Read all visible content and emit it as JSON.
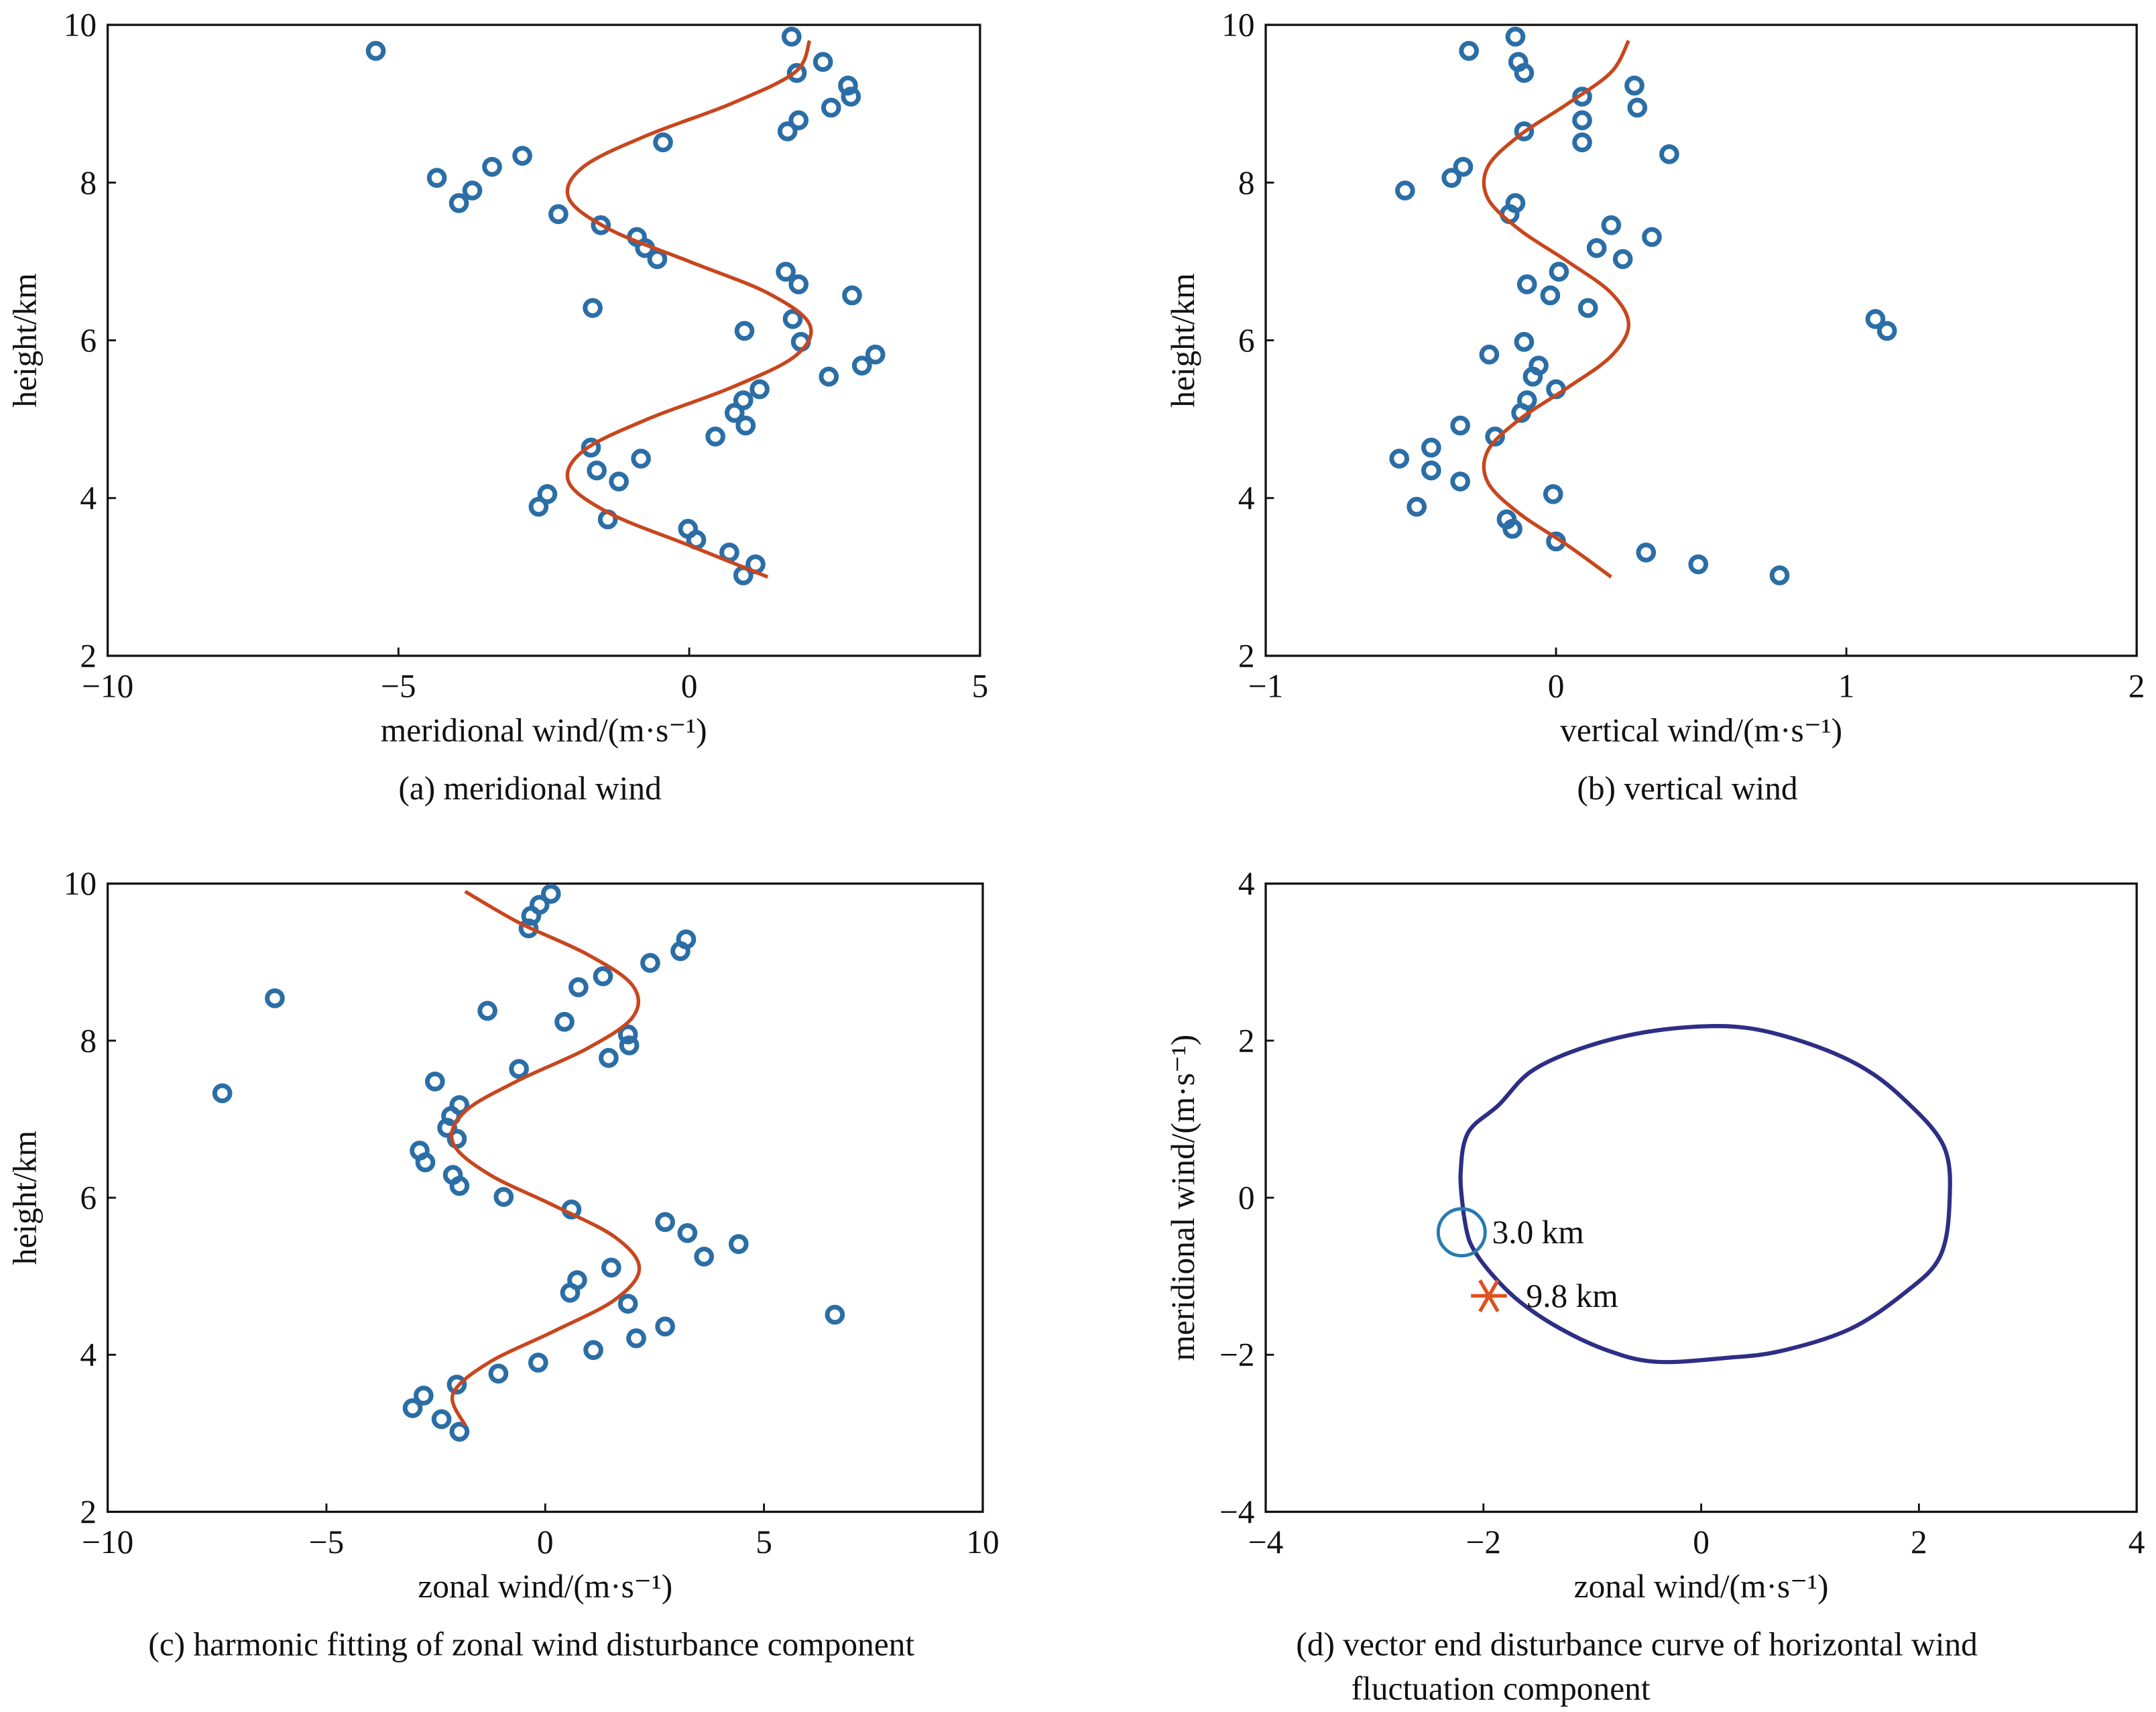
{
  "chart_data": [
    {
      "type": "scatter",
      "title": [
        "(a) meridional wind"
      ],
      "xlabel": "meridional wind/(m·s⁻¹)",
      "ylabel": "height/km",
      "xlim": [
        -10,
        5
      ],
      "ylim": [
        2,
        10
      ],
      "xticks": [
        {
          "value": -10,
          "label": "−10"
        },
        {
          "value": -5,
          "label": "−5"
        },
        0,
        5
      ],
      "yticks": [
        2,
        4,
        6,
        8,
        10
      ],
      "series": [
        {
          "mode": "markers",
          "color": "#2b6ea6",
          "x": [
            1.76,
            -5.39,
            2.3,
            1.85,
            2.73,
            2.78,
            2.44,
            1.88,
            1.69,
            -0.45,
            -2.87,
            -3.39,
            -4.34,
            -3.73,
            -3.96,
            -2.25,
            -1.52,
            -0.9,
            -0.76,
            -0.55,
            1.66,
            1.88,
            2.8,
            -1.66,
            1.78,
            0.95,
            1.92,
            3.2,
            2.97,
            2.4,
            1.21,
            0.93,
            0.78,
            0.97,
            0.45,
            -1.69,
            -0.83,
            -1.59,
            -1.21,
            -2.44,
            -2.59,
            -1.4,
            -0.02,
            0.12,
            0.69,
            1.14,
            0.93
          ],
          "y": [
            9.85,
            9.67,
            9.53,
            9.39,
            9.23,
            9.09,
            8.95,
            8.79,
            8.65,
            8.51,
            8.34,
            8.2,
            8.06,
            7.9,
            7.74,
            7.6,
            7.46,
            7.31,
            7.17,
            7.03,
            6.87,
            6.71,
            6.57,
            6.41,
            6.27,
            6.12,
            5.98,
            5.82,
            5.68,
            5.54,
            5.38,
            5.24,
            5.08,
            4.92,
            4.78,
            4.64,
            4.5,
            4.35,
            4.21,
            4.05,
            3.89,
            3.73,
            3.61,
            3.47,
            3.31,
            3.16,
            3.02
          ]
        },
        {
          "mode": "lines",
          "color": "#c8461e",
          "x": [
            1.35,
            0,
            -1.35,
            -2.07,
            -1.82,
            -0.72,
            0.72,
            1.82,
            2.07,
            1.35,
            0,
            -1.35,
            -2.07,
            -1.82,
            -0.72,
            0.72,
            1.82,
            2.07
          ],
          "y": [
            3.0,
            3.4,
            3.8,
            4.2,
            4.6,
            5.0,
            5.4,
            5.8,
            6.2,
            6.6,
            7.0,
            7.4,
            7.8,
            8.2,
            8.6,
            9.0,
            9.4,
            9.8
          ]
        }
      ]
    },
    {
      "type": "scatter",
      "title": [
        "(b) vertical wind"
      ],
      "xlabel": "vertical wind/(m·s⁻¹)",
      "ylabel": "height/km",
      "xlim": [
        -1,
        2
      ],
      "ylim": [
        2,
        10
      ],
      "xticks": [
        {
          "value": -1,
          "label": "−1"
        },
        0,
        1,
        2
      ],
      "yticks": [
        2,
        4,
        6,
        8,
        10
      ],
      "series": [
        {
          "mode": "markers",
          "color": "#2b6ea6",
          "x": [
            -0.14,
            -0.3,
            -0.13,
            -0.11,
            0.27,
            0.09,
            0.28,
            0.09,
            -0.11,
            0.09,
            0.39,
            -0.32,
            -0.36,
            -0.52,
            -0.14,
            -0.16,
            0.19,
            0.33,
            0.14,
            0.23,
            0.01,
            -0.1,
            -0.02,
            0.11,
            1.1,
            1.14,
            -0.11,
            -0.23,
            -0.06,
            -0.08,
            0.0,
            -0.1,
            -0.12,
            -0.33,
            -0.21,
            -0.43,
            -0.54,
            -0.43,
            -0.33,
            -0.01,
            -0.48,
            -0.17,
            -0.15,
            0.0,
            0.31,
            0.49,
            0.77
          ],
          "y": [
            9.85,
            9.67,
            9.53,
            9.39,
            9.23,
            9.09,
            8.95,
            8.79,
            8.65,
            8.51,
            8.36,
            8.2,
            8.06,
            7.9,
            7.74,
            7.6,
            7.46,
            7.31,
            7.17,
            7.03,
            6.87,
            6.71,
            6.57,
            6.41,
            6.27,
            6.12,
            5.98,
            5.82,
            5.68,
            5.54,
            5.38,
            5.24,
            5.08,
            4.92,
            4.78,
            4.64,
            4.5,
            4.35,
            4.21,
            4.05,
            3.89,
            3.73,
            3.61,
            3.45,
            3.31,
            3.16,
            3.02
          ]
        },
        {
          "mode": "lines",
          "color": "#c8461e",
          "x": [
            0.19,
            0.04,
            -0.125,
            -0.235,
            -0.235,
            -0.125,
            0.04,
            0.19,
            0.25,
            0.19,
            0.04,
            -0.125,
            -0.235,
            -0.235,
            -0.125,
            0.04,
            0.19,
            0.25
          ],
          "y": [
            3.0,
            3.4,
            3.8,
            4.2,
            4.6,
            5.0,
            5.4,
            5.8,
            6.2,
            6.6,
            7.0,
            7.4,
            7.8,
            8.2,
            8.6,
            9.0,
            9.4,
            9.8
          ]
        }
      ]
    },
    {
      "type": "scatter",
      "title": [
        "(c) harmonic fitting of zonal wind disturbance component"
      ],
      "xlabel": "zonal wind/(m·s⁻¹)",
      "ylabel": "height/km",
      "xlim": [
        -10,
        10
      ],
      "ylim": [
        2,
        10
      ],
      "xticks": [
        {
          "value": -10,
          "label": "−10"
        },
        {
          "value": -5,
          "label": "−5"
        },
        0,
        5,
        10
      ],
      "yticks": [
        2,
        4,
        6,
        8,
        10
      ],
      "series": [
        {
          "mode": "markers",
          "color": "#2b6ea6",
          "x": [
            0.13,
            -0.13,
            -0.32,
            -0.38,
            3.22,
            3.09,
            2.4,
            1.32,
            0.76,
            -6.18,
            -1.32,
            0.44,
            1.89,
            1.92,
            1.45,
            -0.6,
            -2.52,
            -7.38,
            -1.96,
            -2.15,
            -2.24,
            -2.02,
            -2.87,
            -2.74,
            -2.11,
            -1.96,
            -0.95,
            0.6,
            2.74,
            3.25,
            3.63,
            4.42,
            1.51,
            0.73,
            0.57,
            1.89,
            6.62,
            2.74,
            2.08,
            1.1,
            -0.16,
            -1.07,
            -2.02,
            -2.78,
            -3.03,
            -2.37,
            -1.96
          ],
          "y": [
            9.87,
            9.73,
            9.59,
            9.43,
            9.29,
            9.14,
            8.99,
            8.82,
            8.68,
            8.54,
            8.38,
            8.24,
            8.08,
            7.94,
            7.78,
            7.64,
            7.48,
            7.33,
            7.18,
            7.04,
            6.89,
            6.75,
            6.6,
            6.45,
            6.29,
            6.15,
            6.01,
            5.85,
            5.69,
            5.55,
            5.25,
            5.41,
            5.11,
            4.95,
            4.79,
            4.65,
            4.51,
            4.36,
            4.21,
            4.06,
            3.9,
            3.76,
            3.62,
            3.48,
            3.32,
            3.18,
            3.02
          ]
        },
        {
          "mode": "lines",
          "color": "#c8461e",
          "x": [
            -1.83,
            -2.11,
            -1.29,
            0.2,
            1.59,
            2.15,
            1.59,
            0.2,
            -1.29,
            -2.11,
            -1.83,
            -0.59,
            0.96,
            2.0,
            2.0,
            0.96,
            -0.59,
            -1.83
          ],
          "y": [
            3.1,
            3.5,
            3.9,
            4.3,
            4.7,
            5.1,
            5.5,
            5.9,
            6.3,
            6.7,
            7.1,
            7.5,
            7.9,
            8.3,
            8.7,
            9.1,
            9.5,
            9.9
          ]
        }
      ]
    },
    {
      "type": "line",
      "title": [
        "(d) vector end disturbance curve of horizontal wind",
        "fluctuation component"
      ],
      "xlabel": "zonal wind/(m·s⁻¹)",
      "ylabel": "meridional wind/(m·s⁻¹)",
      "xlim": [
        -4,
        4
      ],
      "ylim": [
        -4,
        4
      ],
      "xticks": [
        {
          "value": -4,
          "label": "−4"
        },
        {
          "value": -2,
          "label": "−2"
        },
        0,
        2,
        4
      ],
      "yticks": [
        {
          "value": -4,
          "label": "−4"
        },
        {
          "value": -2,
          "label": "−2"
        },
        0,
        2,
        4
      ],
      "series": [
        {
          "mode": "lines",
          "color": "#2e2e86",
          "x": [
            -2.18,
            -2.21,
            -2.14,
            -1.86,
            -1.55,
            -1.04,
            -0.41,
            0.29,
            0.86,
            1.43,
            1.85,
            2.23,
            2.28,
            2.19,
            1.88,
            1.37,
            0.74,
            0.23,
            -0.41,
            -0.85,
            -1.29,
            -1.67,
            -1.95,
            -2.12
          ],
          "y": [
            -0.23,
            0.3,
            0.83,
            1.18,
            1.62,
            1.93,
            2.13,
            2.18,
            2.02,
            1.7,
            1.27,
            0.65,
            -0.09,
            -0.76,
            -1.2,
            -1.67,
            -1.95,
            -2.04,
            -2.09,
            -1.95,
            -1.67,
            -1.32,
            -0.93,
            -0.58
          ]
        }
      ],
      "annotations": [
        {
          "text": "3.0 km",
          "x": -2.2,
          "y": -0.44,
          "marker": "circle",
          "color": "#2a7ab0"
        },
        {
          "text": "9.8 km",
          "x": -1.95,
          "y": -1.25,
          "marker": "asterisk",
          "color": "#e05020"
        }
      ]
    }
  ]
}
